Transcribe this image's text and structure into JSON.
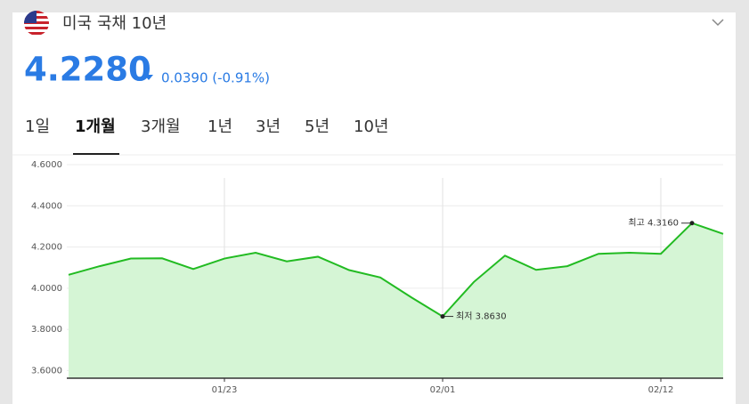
{
  "header": {
    "title": "미국 국채 10년",
    "price": "4.2280",
    "change": "0.0390 (-0.91%)"
  },
  "tabs": [
    "1일",
    "1개월",
    "3개월",
    "1년",
    "3년",
    "5년",
    "10년"
  ],
  "chart_data": {
    "type": "area",
    "categories": [
      null,
      null,
      null,
      null,
      null,
      "01/23",
      null,
      null,
      null,
      null,
      null,
      null,
      "02/01",
      null,
      null,
      null,
      null,
      null,
      null,
      "02/12",
      null,
      null
    ],
    "values": [
      4.065,
      4.107,
      4.144,
      4.145,
      4.093,
      4.144,
      4.172,
      4.13,
      4.153,
      4.088,
      4.052,
      3.955,
      3.863,
      4.03,
      4.158,
      4.089,
      4.107,
      4.167,
      4.172,
      4.167,
      4.316,
      4.264
    ],
    "color": "#22bb22",
    "ylim": [
      3.563,
      4.6
    ],
    "yticks": [
      {
        "value": 3.6,
        "label": "3.6000"
      },
      {
        "value": 3.8,
        "label": "3.8000"
      },
      {
        "value": 4.0,
        "label": "4.0000"
      },
      {
        "value": 4.2,
        "label": "4.2000"
      },
      {
        "value": 4.4,
        "label": "4.4000"
      },
      {
        "value": 4.6,
        "label": "4.6000"
      }
    ],
    "grid": true,
    "low_label": "최저 3.8630",
    "high_label": "최고 4.3160"
  }
}
